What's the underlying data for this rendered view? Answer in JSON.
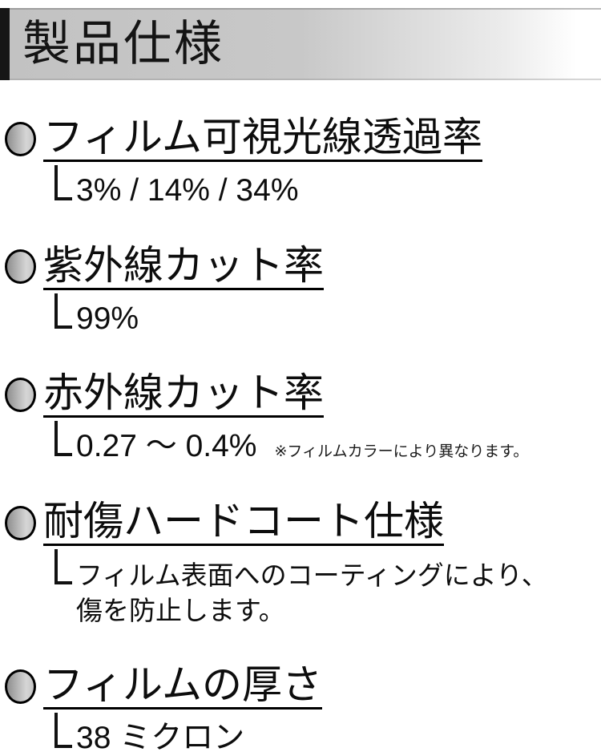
{
  "header": {
    "title": "製品仕様"
  },
  "sections": [
    {
      "title": "フィルム可視光線透過率",
      "value": "3% / 14% / 34%"
    },
    {
      "title": "紫外線カット率",
      "value": "99%"
    },
    {
      "title": "赤外線カット率",
      "value": "0.27 ～ 0.4%",
      "note": "※フィルムカラーにより異なります。"
    },
    {
      "title": "耐傷ハードコート仕様",
      "value_line1": "フィルム表面へのコーティングにより、",
      "value_line2": "傷を防止します。"
    },
    {
      "title": "フィルムの厚さ",
      "value": "38 ミクロン"
    }
  ],
  "icons": {
    "bullet": "gradient-circle-bullet",
    "elbow": "corner-elbow-connector"
  },
  "colors": {
    "text": "#111111",
    "header_accent": "#161616",
    "header_gradient_start": "#c2c2c2",
    "header_gradient_end": "#ffffff",
    "bullet_dark": "#8f8f8f",
    "bullet_light": "#d6d6d6"
  }
}
